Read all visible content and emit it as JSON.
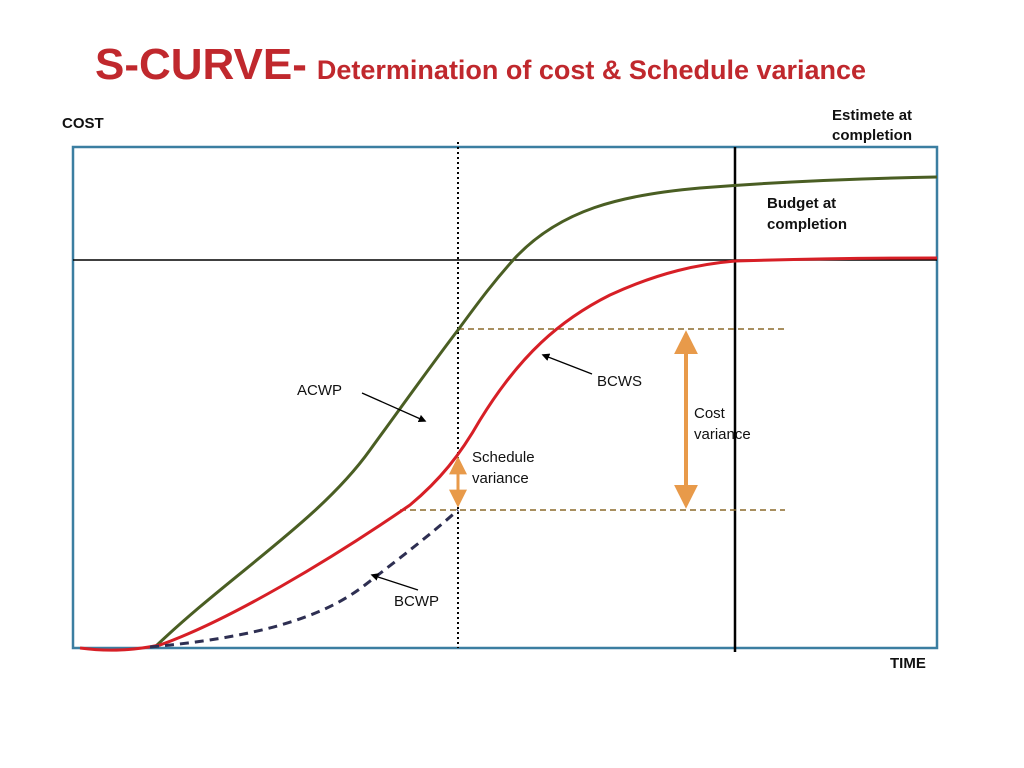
{
  "title": {
    "main": "S-CURVE-",
    "subtitle": "Determination of cost & Schedule variance"
  },
  "axes": {
    "y_label": "COST",
    "x_label": "TIME"
  },
  "labels": {
    "estimate_line1": "Estimete at",
    "estimate_line2": "completion",
    "budget_line1": "Budget at",
    "budget_line2": "completion",
    "acwp": "ACWP",
    "bcws": "BCWS",
    "bcwp": "BCWP",
    "schedule_line1": "Schedule",
    "schedule_line2": "variance",
    "cost_line1": "Cost",
    "cost_line2": "variance"
  },
  "colors": {
    "title": "#c0282d",
    "frame": "#3b7ea1",
    "acwp_curve": "#4a5e23",
    "bcws_curve": "#d71f26",
    "bcwp_curve": "#2e2f52",
    "variance_arrows": "#e89a4a",
    "guide_lines": "#8b6a2b"
  }
}
